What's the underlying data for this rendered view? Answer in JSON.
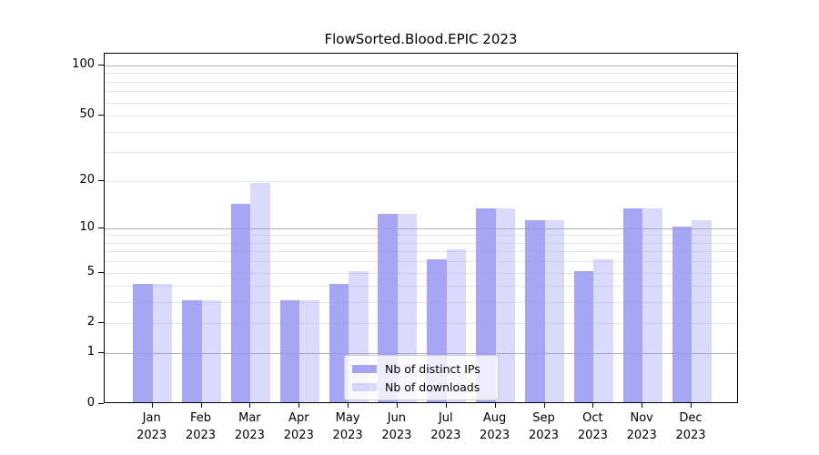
{
  "chart_data": {
    "type": "bar",
    "title": "FlowSorted.Blood.EPIC 2023",
    "categories": [
      {
        "month": "Jan",
        "year": "2023"
      },
      {
        "month": "Feb",
        "year": "2023"
      },
      {
        "month": "Mar",
        "year": "2023"
      },
      {
        "month": "Apr",
        "year": "2023"
      },
      {
        "month": "May",
        "year": "2023"
      },
      {
        "month": "Jun",
        "year": "2023"
      },
      {
        "month": "Jul",
        "year": "2023"
      },
      {
        "month": "Aug",
        "year": "2023"
      },
      {
        "month": "Sep",
        "year": "2023"
      },
      {
        "month": "Oct",
        "year": "2023"
      },
      {
        "month": "Nov",
        "year": "2023"
      },
      {
        "month": "Dec",
        "year": "2023"
      }
    ],
    "series": [
      {
        "name": "Nb of distinct IPs",
        "values": [
          4,
          3,
          14,
          3,
          4,
          12,
          6,
          13,
          11,
          5,
          13,
          10
        ],
        "alpha": 0.85
      },
      {
        "name": "Nb of downloads",
        "values": [
          4,
          3,
          19,
          3,
          5,
          12,
          7,
          13,
          11,
          6,
          13,
          11
        ],
        "alpha": 0.35
      }
    ],
    "base_color": "#9696f3",
    "yscale": "log10(1+x)",
    "ylim": [
      0,
      117
    ],
    "yticks": [
      0,
      1,
      2,
      5,
      10,
      20,
      50,
      100
    ],
    "grid_major_values": [
      1,
      10,
      100
    ],
    "grid_minor_values": [
      2,
      3,
      4,
      5,
      6,
      7,
      8,
      9,
      20,
      30,
      40,
      50,
      60,
      70,
      80,
      90
    ],
    "grid": true,
    "legend_position": "lower center",
    "xlabel": "",
    "ylabel": ""
  }
}
